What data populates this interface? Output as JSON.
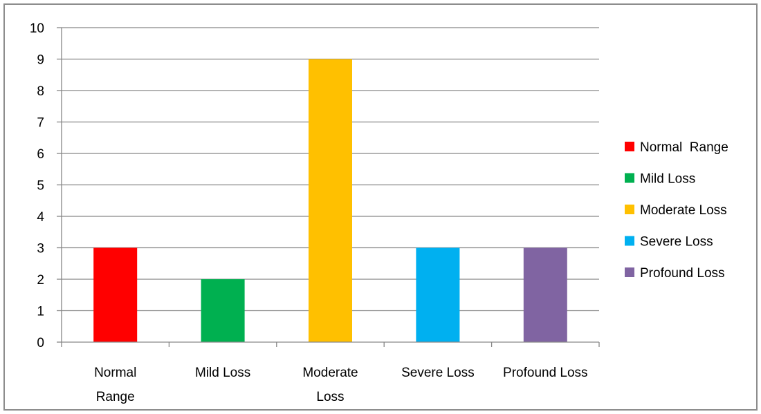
{
  "chart_data": {
    "type": "bar",
    "categories": [
      "Normal Range",
      "Mild Loss",
      "Moderate Loss",
      "Severe Loss",
      "Profound Loss"
    ],
    "category_label_lines": [
      [
        "Normal",
        "Range"
      ],
      [
        "Mild Loss"
      ],
      [
        "Moderate",
        "Loss"
      ],
      [
        "Severe Loss"
      ],
      [
        "Profound Loss"
      ]
    ],
    "values": [
      3,
      2,
      9,
      3,
      3
    ],
    "colors": [
      "#ff0000",
      "#00b050",
      "#ffc000",
      "#00b0f0",
      "#8064a2"
    ],
    "ylim": [
      0,
      10
    ],
    "yticks": [
      "0",
      "1",
      "2",
      "3",
      "4",
      "5",
      "6",
      "7",
      "8",
      "9",
      "10"
    ],
    "grid": true,
    "legend": {
      "placement": "right",
      "entries": [
        "Normal  Range",
        "Mild Loss",
        "Moderate Loss",
        "Severe Loss",
        "Profound Loss"
      ]
    },
    "title": "",
    "xlabel": "",
    "ylabel": ""
  }
}
